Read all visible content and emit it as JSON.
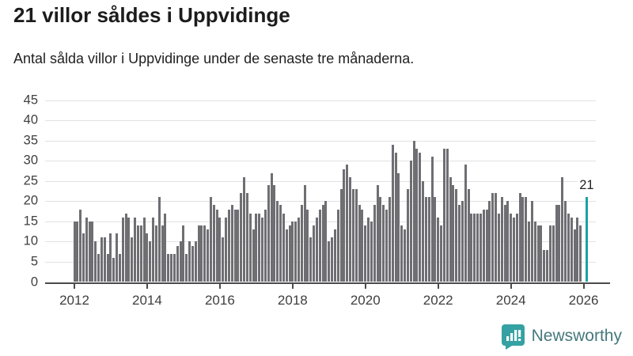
{
  "title": "21 villor såldes i Uppvidinge",
  "subtitle": "Antal sålda villor i Uppvidinge under de senaste tre månaderna.",
  "annotation_label": "21",
  "logo": {
    "text": "Newsworthy",
    "icon": "newsworthy-speech-bubble-chart-icon"
  },
  "colors": {
    "bar": "#6e6e73",
    "highlight": "#1aa3a3",
    "grid": "#e2e2e4",
    "axis": "#4b4b4b",
    "text": "#3f3f3f",
    "logo_icon": "#35a1a2",
    "logo_text": "#45797d"
  },
  "chart_data": {
    "type": "bar",
    "title": "21 villor såldes i Uppvidinge",
    "subtitle": "Antal sålda villor i Uppvidinge under de senaste tre månaderna.",
    "ylabel": "",
    "xlabel": "",
    "ylim": [
      0,
      45
    ],
    "yticks": [
      0,
      5,
      10,
      15,
      20,
      25,
      30,
      35,
      40,
      45
    ],
    "xticks": [
      2012,
      2014,
      2016,
      2018,
      2020,
      2022,
      2024,
      2026
    ],
    "grid": true,
    "x_start_month": "2012-01",
    "values_by_year": {
      "2012": [
        15,
        15,
        18,
        12,
        16,
        15,
        15,
        10,
        7,
        11,
        11,
        7
      ],
      "2013": [
        12,
        6,
        12,
        7,
        16,
        17,
        16,
        11,
        16,
        14,
        14,
        16
      ],
      "2014": [
        12,
        10,
        16,
        14,
        21,
        14,
        17,
        7,
        7,
        7,
        9,
        10
      ],
      "2015": [
        14,
        7,
        10,
        9,
        10,
        14,
        14,
        14,
        13,
        21,
        19,
        18
      ],
      "2016": [
        16,
        11,
        16,
        18,
        19,
        18,
        18,
        22,
        26,
        22,
        17,
        13
      ],
      "2017": [
        17,
        17,
        16,
        18,
        24,
        27,
        24,
        20,
        19,
        17,
        13,
        14
      ],
      "2018": [
        15,
        15,
        16,
        19,
        24,
        18,
        11,
        14,
        16,
        18,
        19,
        20
      ],
      "2019": [
        10,
        11,
        13,
        18,
        23,
        28,
        29,
        26,
        23,
        23,
        19,
        18
      ],
      "2020": [
        14,
        16,
        15,
        19,
        24,
        21,
        19,
        18,
        21,
        34,
        32,
        27
      ],
      "2021": [
        14,
        13,
        23,
        30,
        35,
        33,
        32,
        25,
        21,
        21,
        31,
        21
      ],
      "2022": [
        16,
        14,
        33,
        33,
        26,
        24,
        23,
        19,
        20,
        29,
        23,
        17
      ],
      "2023": [
        17,
        17,
        17,
        18,
        18,
        20,
        22,
        22,
        17,
        21,
        19,
        20
      ],
      "2024": [
        17,
        16,
        17,
        22,
        21,
        21,
        15,
        20,
        15,
        14,
        14,
        8
      ],
      "2025": [
        8,
        14,
        14,
        19,
        19,
        26,
        20,
        17,
        16,
        13,
        16,
        14
      ]
    },
    "highlight": {
      "month": "2026-02",
      "value": 21,
      "label": "21"
    }
  }
}
